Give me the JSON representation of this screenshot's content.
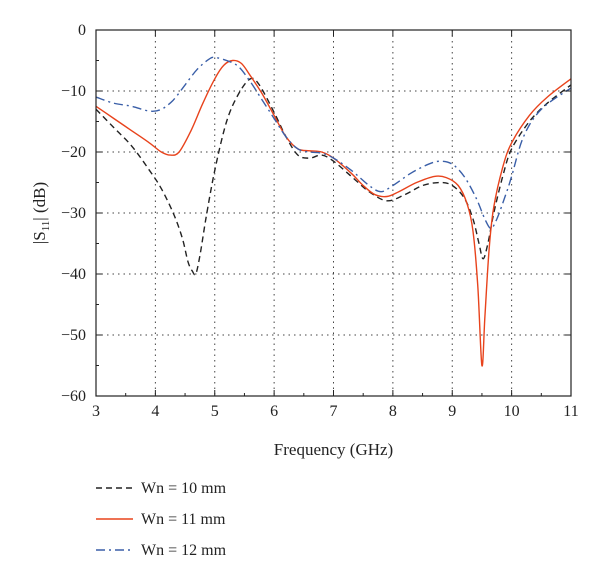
{
  "chart_data": {
    "type": "line",
    "xlabel": "Frequency (GHz)",
    "ylabel": {
      "pre": "|S",
      "sub": "11",
      "post": "| (dB)"
    },
    "xlim": [
      3,
      11
    ],
    "ylim": [
      -60,
      0
    ],
    "xticks": [
      3,
      4,
      5,
      6,
      7,
      8,
      9,
      10,
      11
    ],
    "yticks": [
      0,
      -10,
      -20,
      -30,
      -40,
      -50,
      -60
    ],
    "grid": true,
    "legend_position": "below",
    "series": [
      {
        "name": "Wn = 10 mm",
        "color": "#222222",
        "dash": "dashed",
        "points": [
          [
            3.0,
            -13.0
          ],
          [
            3.3,
            -16.0
          ],
          [
            3.6,
            -19.0
          ],
          [
            3.9,
            -23.0
          ],
          [
            4.1,
            -26.0
          ],
          [
            4.3,
            -30.0
          ],
          [
            4.45,
            -34.0
          ],
          [
            4.55,
            -38.0
          ],
          [
            4.62,
            -39.5
          ],
          [
            4.68,
            -40.0
          ],
          [
            4.75,
            -37.0
          ],
          [
            4.85,
            -31.0
          ],
          [
            5.0,
            -23.0
          ],
          [
            5.2,
            -15.0
          ],
          [
            5.4,
            -10.5
          ],
          [
            5.6,
            -8.0
          ],
          [
            5.75,
            -9.0
          ],
          [
            6.0,
            -13.5
          ],
          [
            6.2,
            -17.5
          ],
          [
            6.4,
            -20.5
          ],
          [
            6.6,
            -21.0
          ],
          [
            6.8,
            -20.5
          ],
          [
            7.0,
            -21.5
          ],
          [
            7.3,
            -24.0
          ],
          [
            7.6,
            -26.5
          ],
          [
            7.9,
            -28.0
          ],
          [
            8.2,
            -27.0
          ],
          [
            8.5,
            -25.5
          ],
          [
            8.8,
            -25.0
          ],
          [
            9.0,
            -25.5
          ],
          [
            9.2,
            -27.5
          ],
          [
            9.35,
            -31.0
          ],
          [
            9.45,
            -35.0
          ],
          [
            9.52,
            -37.5
          ],
          [
            9.6,
            -35.0
          ],
          [
            9.7,
            -30.0
          ],
          [
            9.85,
            -24.0
          ],
          [
            10.0,
            -19.5
          ],
          [
            10.3,
            -15.0
          ],
          [
            10.6,
            -12.0
          ],
          [
            11.0,
            -9.0
          ]
        ]
      },
      {
        "name": "Wn = 11 mm",
        "color": "#e8431c",
        "dash": "solid",
        "points": [
          [
            3.0,
            -12.5
          ],
          [
            3.3,
            -14.5
          ],
          [
            3.6,
            -16.5
          ],
          [
            3.9,
            -18.5
          ],
          [
            4.1,
            -20.0
          ],
          [
            4.25,
            -20.5
          ],
          [
            4.4,
            -20.0
          ],
          [
            4.6,
            -16.5
          ],
          [
            4.8,
            -12.0
          ],
          [
            5.0,
            -8.0
          ],
          [
            5.15,
            -5.8
          ],
          [
            5.3,
            -5.0
          ],
          [
            5.45,
            -5.5
          ],
          [
            5.6,
            -7.5
          ],
          [
            5.8,
            -10.5
          ],
          [
            6.0,
            -14.0
          ],
          [
            6.2,
            -17.5
          ],
          [
            6.4,
            -19.5
          ],
          [
            6.6,
            -19.8
          ],
          [
            6.8,
            -20.0
          ],
          [
            7.0,
            -21.0
          ],
          [
            7.3,
            -23.5
          ],
          [
            7.5,
            -25.5
          ],
          [
            7.7,
            -27.0
          ],
          [
            7.9,
            -27.3
          ],
          [
            8.1,
            -26.5
          ],
          [
            8.4,
            -25.0
          ],
          [
            8.7,
            -24.0
          ],
          [
            8.9,
            -24.2
          ],
          [
            9.1,
            -25.5
          ],
          [
            9.25,
            -28.5
          ],
          [
            9.35,
            -33.0
          ],
          [
            9.43,
            -42.0
          ],
          [
            9.5,
            -55.0
          ],
          [
            9.55,
            -47.0
          ],
          [
            9.62,
            -36.0
          ],
          [
            9.7,
            -29.0
          ],
          [
            9.85,
            -22.5
          ],
          [
            10.0,
            -18.5
          ],
          [
            10.3,
            -14.0
          ],
          [
            10.6,
            -11.0
          ],
          [
            11.0,
            -8.0
          ]
        ]
      },
      {
        "name": "Wn = 12 mm",
        "color": "#3a5fa8",
        "dash": "dashdot",
        "points": [
          [
            3.0,
            -11.0
          ],
          [
            3.3,
            -12.0
          ],
          [
            3.6,
            -12.5
          ],
          [
            3.9,
            -13.3
          ],
          [
            4.1,
            -13.0
          ],
          [
            4.3,
            -11.5
          ],
          [
            4.5,
            -9.0
          ],
          [
            4.7,
            -6.5
          ],
          [
            4.9,
            -4.8
          ],
          [
            5.0,
            -4.5
          ],
          [
            5.2,
            -5.0
          ],
          [
            5.4,
            -6.0
          ],
          [
            5.6,
            -8.5
          ],
          [
            5.8,
            -11.5
          ],
          [
            6.0,
            -14.5
          ],
          [
            6.2,
            -17.5
          ],
          [
            6.4,
            -19.5
          ],
          [
            6.6,
            -20.0
          ],
          [
            6.8,
            -20.2
          ],
          [
            7.0,
            -21.0
          ],
          [
            7.3,
            -23.0
          ],
          [
            7.6,
            -25.5
          ],
          [
            7.8,
            -26.5
          ],
          [
            8.0,
            -25.5
          ],
          [
            8.3,
            -23.5
          ],
          [
            8.6,
            -22.0
          ],
          [
            8.8,
            -21.5
          ],
          [
            9.0,
            -22.0
          ],
          [
            9.2,
            -24.0
          ],
          [
            9.4,
            -27.5
          ],
          [
            9.55,
            -31.0
          ],
          [
            9.65,
            -32.5
          ],
          [
            9.75,
            -31.0
          ],
          [
            9.9,
            -27.0
          ],
          [
            10.0,
            -24.0
          ],
          [
            10.2,
            -17.5
          ],
          [
            10.5,
            -13.0
          ],
          [
            11.0,
            -9.5
          ]
        ]
      }
    ]
  }
}
